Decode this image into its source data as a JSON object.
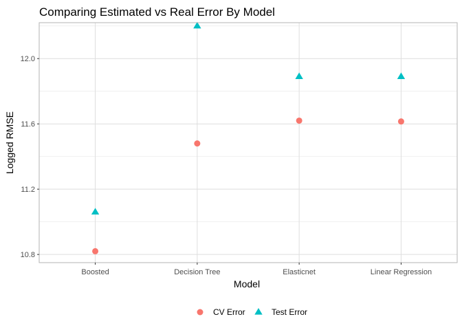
{
  "chart_data": {
    "type": "scatter",
    "title": "Comparing Estimated vs Real Error By Model",
    "xlabel": "Model",
    "ylabel": "Logged RMSE",
    "categories": [
      "Boosted",
      "Decision Tree",
      "Elasticnet",
      "Linear Regression"
    ],
    "y_ticks": [
      "10.8",
      "11.2",
      "11.6",
      "12.0"
    ],
    "ylim": [
      10.75,
      12.22
    ],
    "grid": true,
    "legend_position": "bottom",
    "series": [
      {
        "name": "CV Error",
        "shape": "circle",
        "color": "#F8766D",
        "values": [
          10.82,
          11.48,
          11.62,
          11.615
        ]
      },
      {
        "name": "Test Error",
        "shape": "triangle",
        "color": "#00BFC4",
        "values": [
          11.06,
          12.2,
          11.89,
          11.89
        ]
      }
    ]
  }
}
